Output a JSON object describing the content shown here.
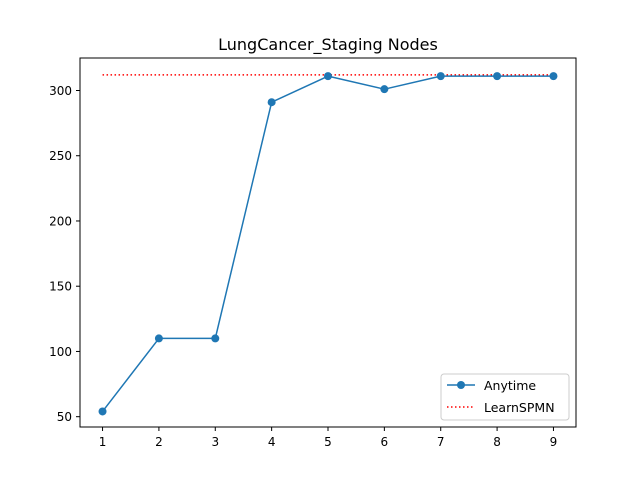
{
  "chart_data": {
    "type": "line",
    "title": "LungCancer_Staging Nodes",
    "xlabel": "",
    "ylabel": "",
    "x": [
      1,
      2,
      3,
      4,
      5,
      6,
      7,
      8,
      9
    ],
    "xlim": [
      0.6,
      9.4
    ],
    "ylim": [
      42.1,
      324.9
    ],
    "xticks": [
      1,
      2,
      3,
      4,
      5,
      6,
      7,
      8,
      9
    ],
    "yticks": [
      50,
      100,
      150,
      200,
      250,
      300
    ],
    "grid": false,
    "legend_position": "lower-right",
    "series": [
      {
        "name": "Anytime",
        "style": "solid-line-circle-markers",
        "color": "#1f77b4",
        "values": [
          54,
          110,
          110,
          291,
          311,
          301,
          311,
          311,
          311
        ]
      },
      {
        "name": "LearnSPMN",
        "style": "dotted-line",
        "color": "#ff0000",
        "values": [
          312,
          312,
          312,
          312,
          312,
          312,
          312,
          312,
          312
        ]
      }
    ]
  }
}
